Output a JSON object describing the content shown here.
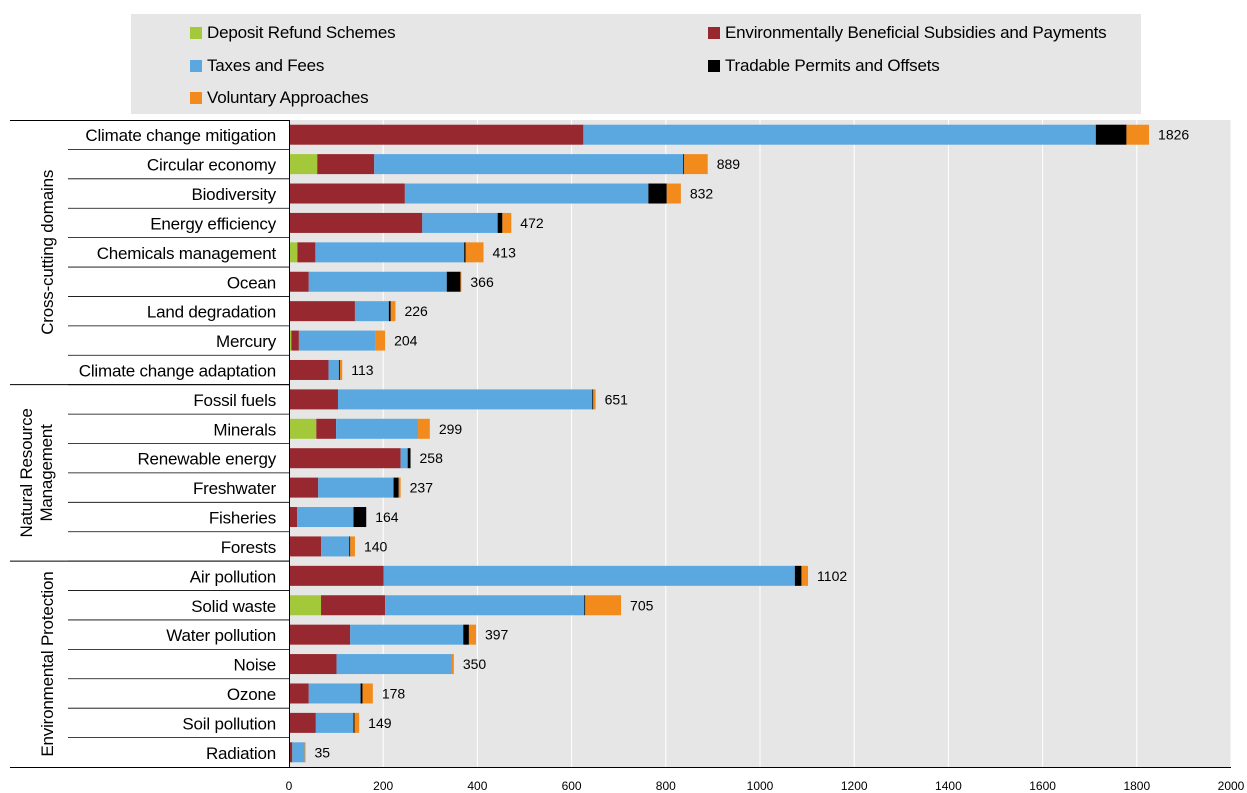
{
  "colors": {
    "Deposit Refund Schemes": "#a3c93a",
    "Environmentally Beneficial Subsidies and Payments": "#97282f",
    "Taxes and Fees": "#5ba8e0",
    "Tradable Permits and Offsets": "#000000",
    "Voluntary Approaches": "#f28b1c",
    "plot_background": "#e6e6e6",
    "gridline": "#ffffff"
  },
  "chart_data": {
    "type": "bar",
    "orientation": "horizontal",
    "stacked": true,
    "legend_position": "top",
    "grid": true,
    "xlim": [
      0,
      2000
    ],
    "x_ticks": [
      0,
      200,
      400,
      600,
      800,
      1000,
      1200,
      1400,
      1600,
      1800,
      2000
    ],
    "groups": [
      {
        "label": "Cross-cutting domains",
        "start": 0,
        "end": 8
      },
      {
        "label": "Natural Resource Management",
        "start": 9,
        "end": 14
      },
      {
        "label": "Environmental Protection",
        "start": 15,
        "end": 21
      }
    ],
    "categories": [
      "Climate change mitigation",
      "Circular economy",
      "Biodiversity",
      "Energy efficiency",
      "Chemicals management",
      "Ocean",
      "Land degradation",
      "Mercury",
      "Climate change adaptation",
      "Fossil fuels",
      "Minerals",
      "Renewable energy",
      "Freshwater",
      "Fisheries",
      "Forests",
      "Air pollution",
      "Solid waste",
      "Water pollution",
      "Noise",
      "Ozone",
      "Soil pollution",
      "Radiation"
    ],
    "totals": [
      1826,
      889,
      832,
      472,
      413,
      366,
      226,
      204,
      113,
      651,
      299,
      258,
      237,
      164,
      140,
      1102,
      705,
      397,
      350,
      178,
      149,
      35
    ],
    "series": [
      {
        "name": "Deposit Refund Schemes",
        "values": [
          2,
          60,
          0,
          0,
          18,
          0,
          0,
          5,
          0,
          0,
          58,
          0,
          0,
          0,
          0,
          2,
          68,
          2,
          0,
          2,
          0,
          0
        ]
      },
      {
        "name": "Environmentally Beneficial Subsidies and Payments",
        "values": [
          623,
          121,
          246,
          283,
          38,
          42,
          140,
          16,
          84,
          104,
          42,
          237,
          62,
          17,
          68,
          199,
          136,
          128,
          101,
          40,
          57,
          7
        ]
      },
      {
        "name": "Taxes and Fees",
        "values": [
          1088,
          656,
          517,
          160,
          316,
          293,
          72,
          163,
          22,
          540,
          174,
          15,
          160,
          120,
          60,
          873,
          423,
          240,
          244,
          110,
          80,
          26
        ]
      },
      {
        "name": "Tradable Permits and Offsets",
        "values": [
          65,
          2,
          39,
          10,
          3,
          29,
          4,
          0,
          2,
          2,
          0,
          6,
          11,
          27,
          2,
          14,
          2,
          12,
          0,
          4,
          2,
          0
        ]
      },
      {
        "name": "Voluntary Approaches",
        "values": [
          48,
          50,
          30,
          19,
          38,
          2,
          10,
          20,
          5,
          5,
          25,
          0,
          4,
          0,
          10,
          14,
          76,
          15,
          5,
          22,
          10,
          2
        ]
      }
    ]
  },
  "legend": {
    "items": [
      {
        "label": "Deposit Refund Schemes",
        "color": "#a3c93a"
      },
      {
        "label": "Environmentally Beneficial Subsidies and Payments",
        "color": "#97282f"
      },
      {
        "label": "Taxes and Fees",
        "color": "#5ba8e0"
      },
      {
        "label": "Tradable Permits and Offsets",
        "color": "#000000"
      },
      {
        "label": "Voluntary Approaches",
        "color": "#f28b1c"
      }
    ]
  }
}
